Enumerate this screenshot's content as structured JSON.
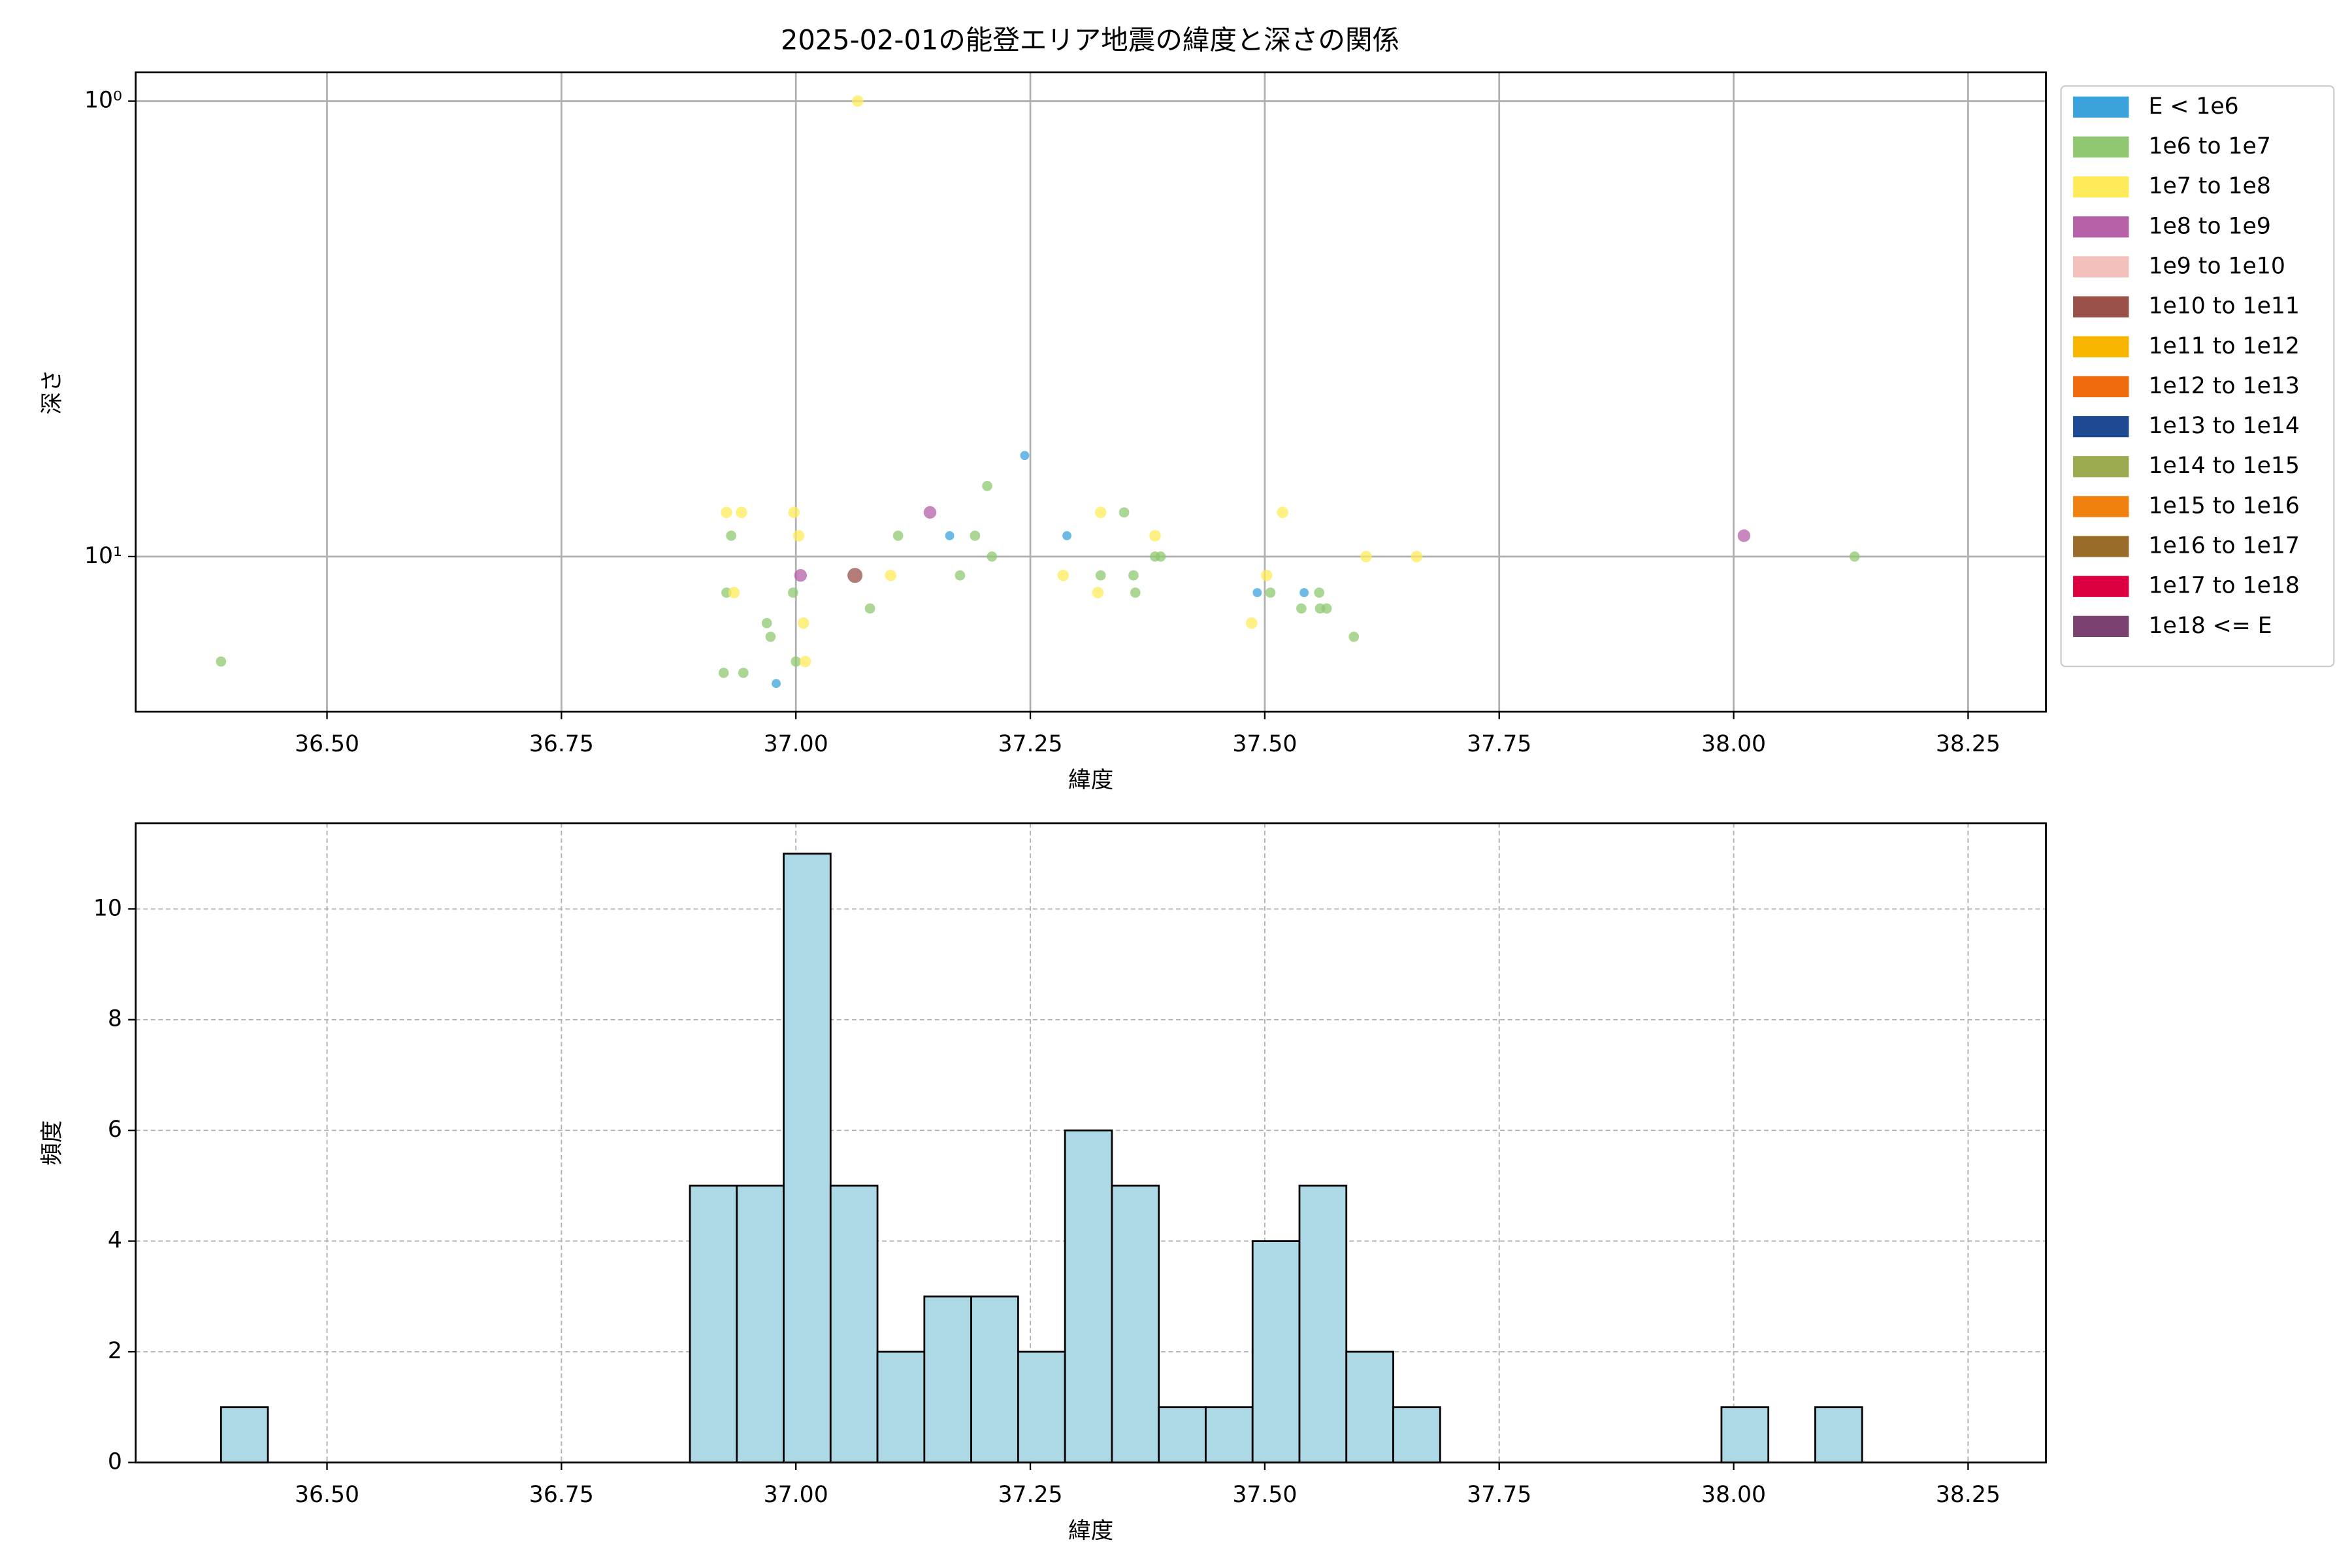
{
  "chart_data": [
    {
      "type": "scatter",
      "title": "2025-02-01の能登エリア地震の緯度と深さの関係",
      "xlabel": "緯度",
      "ylabel": "深さ",
      "xlim": [
        36.296,
        38.333
      ],
      "xticks": [
        {
          "value": 36.5,
          "label": "36.50"
        },
        {
          "value": 36.75,
          "label": "36.75"
        },
        {
          "value": 37.0,
          "label": "37.00"
        },
        {
          "value": 37.25,
          "label": "37.25"
        },
        {
          "value": 37.5,
          "label": "37.50"
        },
        {
          "value": 37.75,
          "label": "37.75"
        },
        {
          "value": 38.0,
          "label": "38.00"
        },
        {
          "value": 38.25,
          "label": "38.25"
        }
      ],
      "ylim": [
        0.865,
        21.9
      ],
      "log_y": true,
      "y_inverted": true,
      "yticks": [
        {
          "value": 1,
          "label": "10⁰"
        },
        {
          "value": 10,
          "label": "10¹"
        }
      ],
      "grid": true,
      "legend_position": "outside-right",
      "series": [
        {
          "name": "E < 1e6",
          "color": "#3ba3dc",
          "x": [
            37.244,
            37.164,
            36.979,
            37.289,
            37.492,
            37.542
          ],
          "values": [
            6,
            9,
            19,
            9,
            12,
            12
          ]
        },
        {
          "name": "1e6 to 1e7",
          "color": "#8fc870",
          "x": [
            36.387,
            37.204,
            36.931,
            37.109,
            37.191,
            37.209,
            37.175,
            36.926,
            36.997,
            37.079,
            36.969,
            36.973,
            37.0,
            36.923,
            36.944,
            37.35,
            37.325,
            37.36,
            37.362,
            37.383,
            37.389,
            37.506,
            37.558,
            37.539,
            37.559,
            37.566,
            37.595,
            38.129
          ],
          "values": [
            17,
            7,
            9,
            9,
            9,
            10,
            11,
            12,
            12,
            13,
            14,
            15,
            17,
            18,
            18,
            8,
            11,
            11,
            12,
            10,
            10,
            12,
            12,
            13,
            13,
            13,
            15,
            10
          ]
        },
        {
          "name": "1e7 to 1e8",
          "color": "#ffeb5a",
          "x": [
            37.066,
            36.926,
            36.942,
            36.998,
            37.003,
            37.101,
            36.934,
            37.008,
            37.01,
            37.325,
            37.285,
            37.322,
            37.383,
            37.519,
            37.502,
            37.486,
            37.608,
            37.662
          ],
          "values": [
            1,
            8,
            8,
            8,
            9,
            11,
            12,
            14,
            17,
            8,
            11,
            12,
            9,
            8,
            11,
            14,
            10,
            10
          ]
        },
        {
          "name": "1e8 to 1e9",
          "color": "#b660a8",
          "x": [
            37.143,
            37.005,
            38.011
          ],
          "values": [
            8,
            11,
            9
          ]
        },
        {
          "name": "1e9 to 1e10",
          "color": "#f4c0bb",
          "x": [],
          "values": []
        },
        {
          "name": "1e10 to 1e11",
          "color": "#9a5149",
          "x": [
            37.063
          ],
          "values": [
            11
          ]
        },
        {
          "name": "1e11 to 1e12",
          "color": "#f8b500",
          "x": [],
          "values": []
        },
        {
          "name": "1e12 to 1e13",
          "color": "#ee6a0c",
          "x": [],
          "values": []
        },
        {
          "name": "1e13 to 1e14",
          "color": "#1d4a92",
          "x": [],
          "values": []
        },
        {
          "name": "1e14 to 1e15",
          "color": "#9caa50",
          "x": [],
          "values": []
        },
        {
          "name": "1e15 to 1e16",
          "color": "#f08010",
          "x": [],
          "values": []
        },
        {
          "name": "1e16 to 1e17",
          "color": "#9a6c2a",
          "x": [],
          "values": []
        },
        {
          "name": "1e17 to 1e18",
          "color": "#dc0040",
          "x": [],
          "values": []
        },
        {
          "name": "1e18 <= E",
          "color": "#7b4170",
          "x": [],
          "values": []
        }
      ]
    },
    {
      "type": "histogram",
      "xlabel": "緯度",
      "ylabel": "頻度",
      "xlim": [
        36.296,
        38.333
      ],
      "xticks": [
        {
          "value": 36.5,
          "label": "36.50"
        },
        {
          "value": 36.75,
          "label": "36.75"
        },
        {
          "value": 37.0,
          "label": "37.00"
        },
        {
          "value": 37.25,
          "label": "37.25"
        },
        {
          "value": 37.5,
          "label": "37.50"
        },
        {
          "value": 37.75,
          "label": "37.75"
        },
        {
          "value": 38.0,
          "label": "38.00"
        },
        {
          "value": 38.25,
          "label": "38.25"
        }
      ],
      "ylim": [
        0,
        11.55
      ],
      "yticks": [
        0,
        2,
        4,
        6,
        8,
        10
      ],
      "grid": true,
      "grid_style": "dashed",
      "color": "#add8e6",
      "edgecolor": "#000000",
      "bins": [
        36.387,
        36.437,
        36.487,
        36.537,
        36.587,
        36.637,
        36.687,
        36.737,
        36.787,
        36.837,
        36.887,
        36.937,
        36.987,
        37.037,
        37.087,
        37.137,
        37.187,
        37.237,
        37.287,
        37.337,
        37.387,
        37.437,
        37.487,
        37.537,
        37.587,
        37.637,
        37.687,
        37.737,
        37.787,
        37.837,
        37.887,
        37.937,
        37.987,
        38.037,
        38.087,
        38.137,
        38.187,
        38.237
      ],
      "values": [
        1,
        0,
        0,
        0,
        0,
        0,
        0,
        0,
        0,
        0,
        5,
        5,
        11,
        5,
        2,
        3,
        3,
        2,
        6,
        5,
        1,
        1,
        4,
        5,
        2,
        1,
        0,
        0,
        0,
        0,
        0,
        0,
        1,
        0,
        1,
        0,
        0
      ]
    }
  ]
}
